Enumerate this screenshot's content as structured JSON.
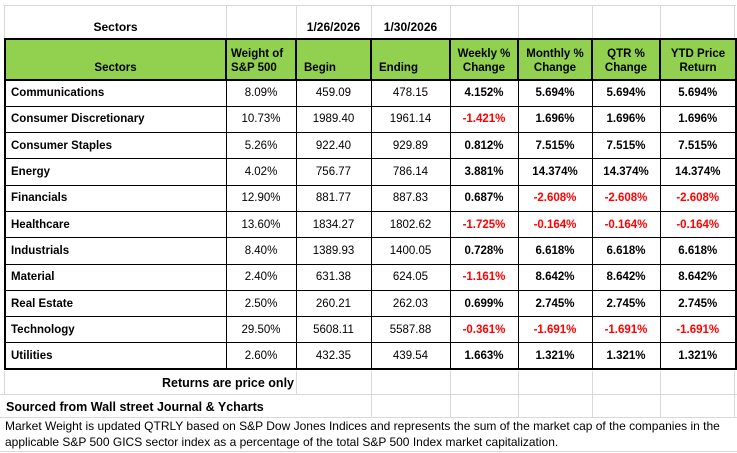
{
  "colors": {
    "header_green": "#92D050",
    "negative_red": "#FF0000",
    "border_black": "#000000",
    "gridline_gray": "#D9D9D9"
  },
  "top_row": {
    "sectors_label": "Sectors",
    "begin_date": "1/26/2026",
    "ending_date": "1/30/2026"
  },
  "table_header": {
    "sectors": "Sectors",
    "weight_line1": "Weight of",
    "weight_line2": "S&P 500",
    "begin": "Begin",
    "ending": "Ending",
    "weekly_line1": "Weekly %",
    "weekly_line2": "Change",
    "monthly_line1": "Monthly %",
    "monthly_line2": "Change",
    "qtr_line1": "QTR %",
    "qtr_line2": "Change",
    "ytd_line1": "YTD Price",
    "ytd_line2": "Return"
  },
  "chart_data": {
    "type": "table",
    "columns": [
      "Sectors",
      "Weight of S&P 500",
      "Begin",
      "Ending",
      "Weekly % Change",
      "Monthly % Change",
      "QTR % Change",
      "YTD Price Return"
    ],
    "begin_date": "1/26/2026",
    "ending_date": "1/30/2026",
    "rows": [
      {
        "sector": "Communications",
        "weight": "8.09%",
        "begin": "459.09",
        "ending": "478.15",
        "weekly": "4.152%",
        "monthly": "5.694%",
        "qtr": "5.694%",
        "ytd": "5.694%"
      },
      {
        "sector": "Consumer Discretionary",
        "weight": "10.73%",
        "begin": "1989.40",
        "ending": "1961.14",
        "weekly": "-1.421%",
        "monthly": "1.696%",
        "qtr": "1.696%",
        "ytd": "1.696%"
      },
      {
        "sector": "Consumer Staples",
        "weight": "5.26%",
        "begin": "922.40",
        "ending": "929.89",
        "weekly": "0.812%",
        "monthly": "7.515%",
        "qtr": "7.515%",
        "ytd": "7.515%"
      },
      {
        "sector": "Energy",
        "weight": "4.02%",
        "begin": "756.77",
        "ending": "786.14",
        "weekly": "3.881%",
        "monthly": "14.374%",
        "qtr": "14.374%",
        "ytd": "14.374%"
      },
      {
        "sector": "Financials",
        "weight": "12.90%",
        "begin": "881.77",
        "ending": "887.83",
        "weekly": "0.687%",
        "monthly": "-2.608%",
        "qtr": "-2.608%",
        "ytd": "-2.608%"
      },
      {
        "sector": "Healthcare",
        "weight": "13.60%",
        "begin": "1834.27",
        "ending": "1802.62",
        "weekly": "-1.725%",
        "monthly": "-0.164%",
        "qtr": "-0.164%",
        "ytd": "-0.164%"
      },
      {
        "sector": "Industrials",
        "weight": "8.40%",
        "begin": "1389.93",
        "ending": "1400.05",
        "weekly": "0.728%",
        "monthly": "6.618%",
        "qtr": "6.618%",
        "ytd": "6.618%"
      },
      {
        "sector": "Material",
        "weight": "2.40%",
        "begin": "631.38",
        "ending": "624.05",
        "weekly": "-1.161%",
        "monthly": "8.642%",
        "qtr": "8.642%",
        "ytd": "8.642%"
      },
      {
        "sector": "Real Estate",
        "weight": "2.50%",
        "begin": "260.21",
        "ending": "262.03",
        "weekly": "0.699%",
        "monthly": "2.745%",
        "qtr": "2.745%",
        "ytd": "2.745%"
      },
      {
        "sector": "Technology",
        "weight": "29.50%",
        "begin": "5608.11",
        "ending": "5587.88",
        "weekly": "-0.361%",
        "monthly": "-1.691%",
        "qtr": "-1.691%",
        "ytd": "-1.691%"
      },
      {
        "sector": "Utilities",
        "weight": "2.60%",
        "begin": "432.35",
        "ending": "439.54",
        "weekly": "1.663%",
        "monthly": "1.321%",
        "qtr": "1.321%",
        "ytd": "1.321%"
      }
    ]
  },
  "footer": {
    "returns_note": "Returns are price only",
    "source_note": "Sourced from Wall street Journal & Ycharts",
    "disclaimer_line1": "Market Weight is updated QTRLY based on S&P Dow Jones Indices and represents the sum of the market cap of the companies in the",
    "disclaimer_line2": "applicable S&P 500 GICS sector index as a percentage of the total S&P 500 Index market capitalization."
  }
}
